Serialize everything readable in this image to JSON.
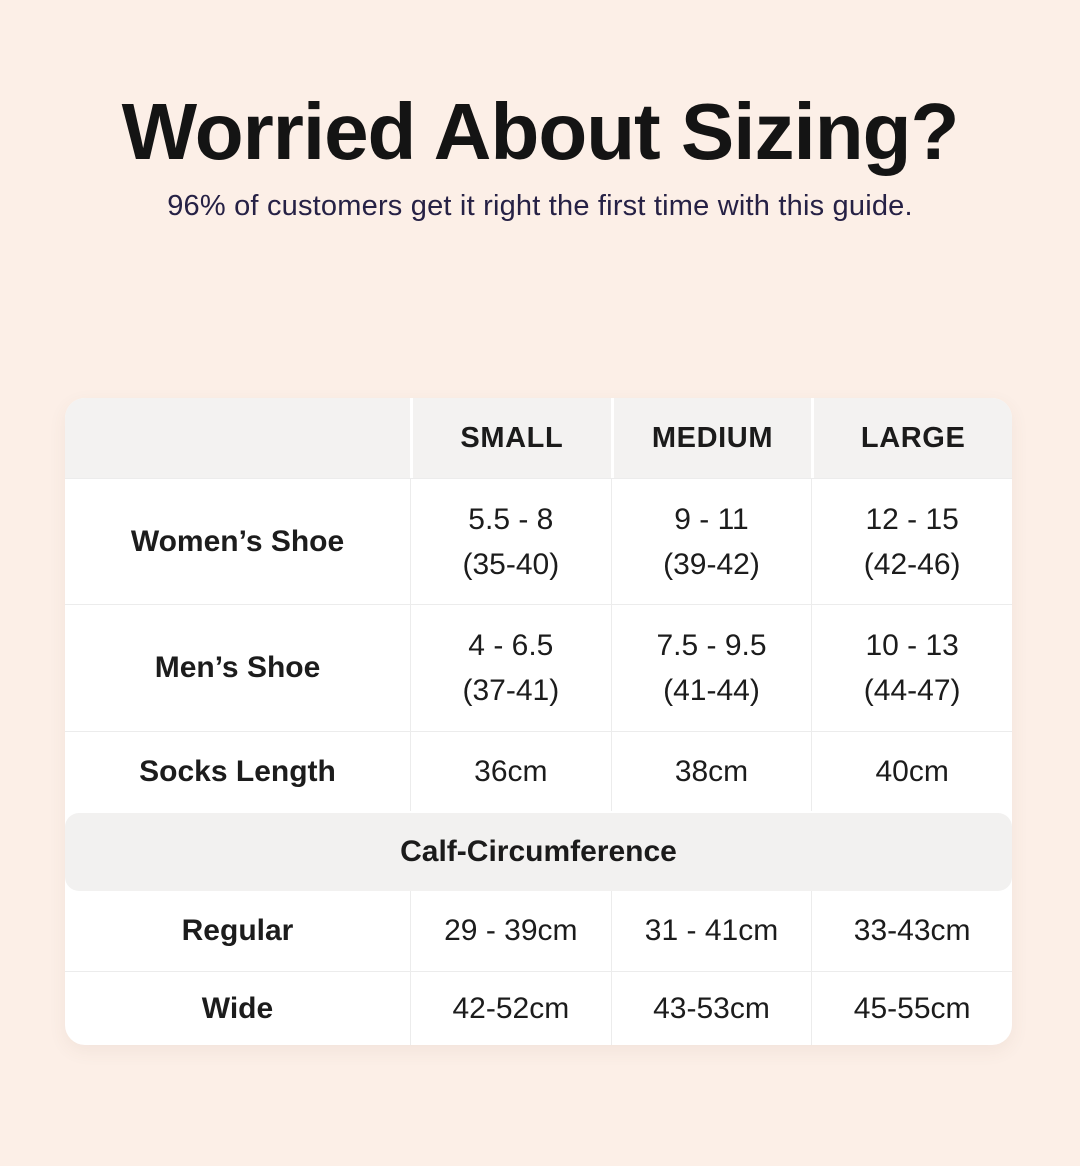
{
  "page": {
    "title": "Worried About Sizing?",
    "subtitle": "96% of customers get it right the first time with this guide.",
    "background_color": "#fcefe7",
    "title_color": "#141414",
    "subtitle_color": "#262145",
    "card_color": "#ffffff",
    "band_color": "#f3f2f1"
  },
  "table": {
    "columns": [
      "",
      "SMALL",
      "MEDIUM",
      "LARGE"
    ],
    "rows": [
      {
        "label": "Women’s Shoe",
        "values": [
          [
            "5.5 - 8",
            "(35-40)"
          ],
          [
            "9 - 11",
            "(39-42)"
          ],
          [
            "12 - 15",
            "(42-46)"
          ]
        ]
      },
      {
        "label": "Men’s Shoe",
        "values": [
          [
            "4 - 6.5",
            "(37-41)"
          ],
          [
            "7.5 - 9.5",
            "(41-44)"
          ],
          [
            "10 - 13",
            "(44-47)"
          ]
        ]
      },
      {
        "label": "Socks Length",
        "values": [
          "36cm",
          "38cm",
          "40cm"
        ]
      }
    ],
    "section_label": "Calf-Circumference",
    "calf_rows": [
      {
        "label": "Regular",
        "values": [
          "29 - 39cm",
          "31 - 41cm",
          "33-43cm"
        ]
      },
      {
        "label": "Wide",
        "values": [
          "42-52cm",
          "43-53cm",
          "45-55cm"
        ]
      }
    ]
  },
  "chart_data": {
    "type": "table",
    "title": "Worried About Sizing?",
    "subtitle": "96% of customers get it right the first time with this guide.",
    "columns": [
      "",
      "SMALL",
      "MEDIUM",
      "LARGE"
    ],
    "rows": [
      [
        "Women’s Shoe",
        "5.5 - 8 (35-40)",
        "9 - 11 (39-42)",
        "12 - 15 (42-46)"
      ],
      [
        "Men’s Shoe",
        "4 - 6.5 (37-41)",
        "7.5 - 9.5 (41-44)",
        "10 - 13 (44-47)"
      ],
      [
        "Socks Length",
        "36cm",
        "38cm",
        "40cm"
      ],
      [
        "Calf-Circumference",
        "",
        "",
        ""
      ],
      [
        "Regular",
        "29 - 39cm",
        "31 - 41cm",
        "33-43cm"
      ],
      [
        "Wide",
        "42-52cm",
        "43-53cm",
        "45-55cm"
      ]
    ]
  }
}
